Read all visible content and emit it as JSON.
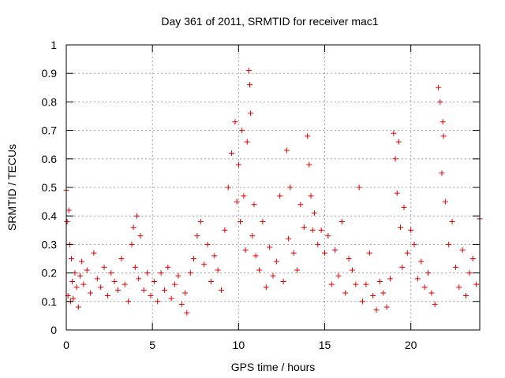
{
  "chart_data": {
    "type": "scatter",
    "title": "Day 361 of 2011, SRMTID for receiver mac1",
    "xlabel": "GPS time / hours",
    "ylabel": "SRMTID / TECUs",
    "xlim": [
      0,
      24
    ],
    "ylim": [
      0,
      1
    ],
    "x_ticks": [
      0,
      5,
      10,
      15,
      20
    ],
    "x_tick_labels": [
      "0",
      "5",
      "10",
      "15",
      "20"
    ],
    "y_ticks": [
      0,
      0.1,
      0.2,
      0.3,
      0.4,
      0.5,
      0.6,
      0.7,
      0.8,
      0.9,
      1
    ],
    "y_tick_labels": [
      "0",
      "0.1",
      "0.2",
      "0.3",
      "0.4",
      "0.5",
      "0.6",
      "0.7",
      "0.8",
      "0.9",
      "1"
    ],
    "grid": true,
    "marker": "+",
    "color": "#e00000",
    "series": [
      {
        "name": "SRMTID",
        "x": [
          0.0,
          0.05,
          0.1,
          0.15,
          0.2,
          0.25,
          0.3,
          0.35,
          0.4,
          0.5,
          0.6,
          0.7,
          0.8,
          0.9,
          1.0,
          1.2,
          1.4,
          1.6,
          1.8,
          2.0,
          2.2,
          2.4,
          2.6,
          2.8,
          3.0,
          3.2,
          3.4,
          3.6,
          3.8,
          3.9,
          4.0,
          4.1,
          4.2,
          4.3,
          4.5,
          4.7,
          4.9,
          5.1,
          5.3,
          5.5,
          5.7,
          5.9,
          6.1,
          6.3,
          6.5,
          6.7,
          6.9,
          7.0,
          7.2,
          7.4,
          7.6,
          7.8,
          8.0,
          8.2,
          8.4,
          8.6,
          8.8,
          9.0,
          9.2,
          9.4,
          9.6,
          9.8,
          9.9,
          10.0,
          10.1,
          10.2,
          10.3,
          10.4,
          10.5,
          10.6,
          10.65,
          10.7,
          10.8,
          10.9,
          11.0,
          11.2,
          11.4,
          11.6,
          11.8,
          12.0,
          12.2,
          12.4,
          12.6,
          12.8,
          12.9,
          13.0,
          13.2,
          13.4,
          13.6,
          13.8,
          14.0,
          14.1,
          14.2,
          14.3,
          14.4,
          14.6,
          14.8,
          15.0,
          15.2,
          15.4,
          15.6,
          15.8,
          16.0,
          16.2,
          16.4,
          16.6,
          16.8,
          17.0,
          17.2,
          17.4,
          17.6,
          17.8,
          18.0,
          18.2,
          18.4,
          18.6,
          18.8,
          19.0,
          19.1,
          19.2,
          19.3,
          19.4,
          19.5,
          19.6,
          19.8,
          20.0,
          20.2,
          20.4,
          20.6,
          20.8,
          21.0,
          21.2,
          21.4,
          21.6,
          21.7,
          21.8,
          21.85,
          21.9,
          22.0,
          22.2,
          22.4,
          22.6,
          22.8,
          23.0,
          23.2,
          23.4,
          23.6,
          23.8,
          24.0
        ],
        "values": [
          0.49,
          0.38,
          0.12,
          0.42,
          0.3,
          0.1,
          0.25,
          0.17,
          0.11,
          0.2,
          0.15,
          0.08,
          0.19,
          0.24,
          0.16,
          0.21,
          0.13,
          0.27,
          0.18,
          0.15,
          0.22,
          0.12,
          0.2,
          0.17,
          0.14,
          0.25,
          0.16,
          0.1,
          0.3,
          0.36,
          0.22,
          0.4,
          0.18,
          0.33,
          0.14,
          0.2,
          0.12,
          0.17,
          0.1,
          0.2,
          0.14,
          0.22,
          0.11,
          0.16,
          0.19,
          0.09,
          0.13,
          0.06,
          0.2,
          0.25,
          0.33,
          0.38,
          0.23,
          0.3,
          0.17,
          0.26,
          0.21,
          0.14,
          0.35,
          0.5,
          0.62,
          0.73,
          0.45,
          0.58,
          0.38,
          0.7,
          0.47,
          0.28,
          0.66,
          0.91,
          0.86,
          0.76,
          0.33,
          0.44,
          0.26,
          0.21,
          0.38,
          0.15,
          0.29,
          0.19,
          0.24,
          0.47,
          0.17,
          0.63,
          0.32,
          0.5,
          0.27,
          0.21,
          0.44,
          0.36,
          0.68,
          0.58,
          0.47,
          0.35,
          0.41,
          0.3,
          0.35,
          0.27,
          0.33,
          0.16,
          0.28,
          0.19,
          0.38,
          0.13,
          0.25,
          0.21,
          0.16,
          0.5,
          0.1,
          0.16,
          0.27,
          0.12,
          0.07,
          0.17,
          0.13,
          0.08,
          0.18,
          0.69,
          0.6,
          0.48,
          0.66,
          0.36,
          0.22,
          0.43,
          0.27,
          0.35,
          0.3,
          0.18,
          0.24,
          0.15,
          0.2,
          0.13,
          0.09,
          0.85,
          0.8,
          0.55,
          0.73,
          0.68,
          0.45,
          0.3,
          0.38,
          0.22,
          0.15,
          0.28,
          0.12,
          0.2,
          0.25,
          0.16,
          0.39
        ]
      }
    ]
  }
}
